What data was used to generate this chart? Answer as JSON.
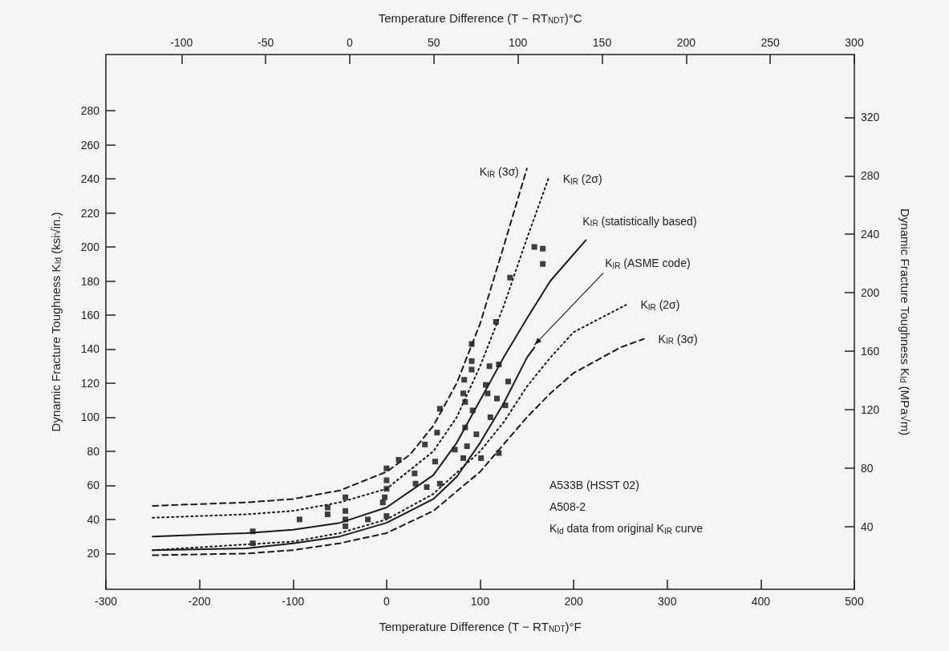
{
  "chart_data": {
    "type": "line",
    "xlabel": "Temperature Difference (T − RT$_{NDT}$)°F",
    "x2label": "Temperature Difference (T − RT$_{NDT}$)°C",
    "ylabel": "Dynamic Fracture Toughness K$_{Id}$ (ksi√in.)",
    "y2label": "Dynamic Fracture Toughness K$_{Id}$ (MPa√m)",
    "xlim": [
      -300,
      500
    ],
    "xticks": [
      -300,
      -200,
      -100,
      0,
      100,
      200,
      300,
      400,
      500
    ],
    "x2lim": [
      -145,
      300
    ],
    "x2ticks": [
      -100,
      -50,
      0,
      50,
      100,
      150,
      200,
      250,
      300
    ],
    "ylim": [
      -1,
      313
    ],
    "yticks": [
      20,
      40,
      60,
      80,
      100,
      120,
      140,
      160,
      180,
      200,
      220,
      240,
      260,
      280
    ],
    "y2lim": [
      -3,
      363
    ],
    "y2ticks": [
      40,
      80,
      120,
      160,
      200,
      240,
      280,
      320
    ],
    "grid": false,
    "legend": false,
    "annotations": [
      "A533B (HSST 02)",
      "A508-2",
      "K$_{Id}$ data from original K$_{IR}$ curve"
    ],
    "series": [
      {
        "type": "line",
        "name": "K$_{IR}$ (3σ)",
        "line_style": "dashed",
        "color": "#1a1a1a",
        "x": [
          -250,
          -150,
          -100,
          -50,
          0,
          25,
          50,
          75,
          100,
          125,
          150
        ],
        "values": [
          48,
          50,
          52,
          57,
          68,
          78,
          95,
          120,
          155,
          200,
          246
        ]
      },
      {
        "type": "line",
        "name": "K$_{IR}$ (2σ)",
        "line_style": "dotted",
        "color": "#1a1a1a",
        "x": [
          -250,
          -150,
          -100,
          -50,
          0,
          50,
          75,
          100,
          125,
          150,
          173
        ],
        "values": [
          41,
          43,
          45,
          50,
          58,
          80,
          100,
          130,
          165,
          205,
          240
        ]
      },
      {
        "type": "line",
        "name": "K$_{IR}$ (statistically based)",
        "line_style": "solid",
        "color": "#1a1a1a",
        "x": [
          -250,
          -150,
          -100,
          -50,
          0,
          50,
          75,
          100,
          125,
          150,
          175,
          213
        ],
        "values": [
          30,
          32,
          34,
          38,
          47,
          66,
          85,
          110,
          135,
          158,
          180,
          204
        ]
      },
      {
        "type": "line",
        "name": "K$_{IR}$ (ASME code)",
        "line_style": "solid",
        "color": "#1a1a1a",
        "x": [
          -250,
          -150,
          -100,
          -50,
          0,
          50,
          75,
          100,
          125,
          150,
          158
        ],
        "values": [
          22,
          23,
          26,
          30,
          38,
          52,
          65,
          85,
          108,
          135,
          141
        ]
      },
      {
        "type": "line",
        "name": "K$_{IR}$ (2σ)",
        "line_style": "dotted",
        "color": "#1a1a1a",
        "x": [
          -250,
          -100,
          -50,
          0,
          50,
          100,
          125,
          150,
          175,
          200,
          256
        ],
        "values": [
          22,
          27,
          32,
          40,
          55,
          80,
          97,
          118,
          135,
          150,
          166
        ]
      },
      {
        "type": "line",
        "name": "K$_{IR}$ (3σ)",
        "line_style": "dashed",
        "color": "#1a1a1a",
        "x": [
          -250,
          -150,
          -100,
          -50,
          0,
          50,
          100,
          125,
          150,
          175,
          200,
          250,
          275
        ],
        "values": [
          19,
          20,
          22,
          26,
          32,
          45,
          68,
          84,
          100,
          114,
          126,
          141,
          146
        ]
      },
      {
        "type": "scatter",
        "marker": "square",
        "color": "#111111",
        "x": [
          -143,
          -143,
          -93,
          -63,
          -63,
          -44,
          -44,
          -44,
          -44,
          -20,
          0,
          0,
          0,
          -2,
          -4,
          0,
          13,
          30,
          31,
          41,
          54,
          57,
          43,
          57,
          52,
          73,
          82,
          84,
          84,
          82,
          158,
          167,
          167,
          132,
          117,
          91,
          91,
          91,
          83,
          110,
          120,
          106,
          130,
          108,
          118,
          127,
          111,
          92,
          96,
          86,
          101,
          120
        ],
        "values": [
          33,
          26,
          40,
          47,
          43,
          53,
          45,
          40,
          36,
          40,
          70,
          63,
          58,
          53,
          50,
          42,
          75,
          67,
          61,
          84,
          91,
          105,
          59,
          61,
          74,
          81,
          76,
          94,
          109,
          114,
          200,
          199,
          190,
          182,
          156,
          143,
          133,
          128,
          122,
          130,
          131,
          119,
          121,
          114,
          111,
          107,
          100,
          104,
          90,
          83,
          76,
          79
        ]
      }
    ]
  }
}
